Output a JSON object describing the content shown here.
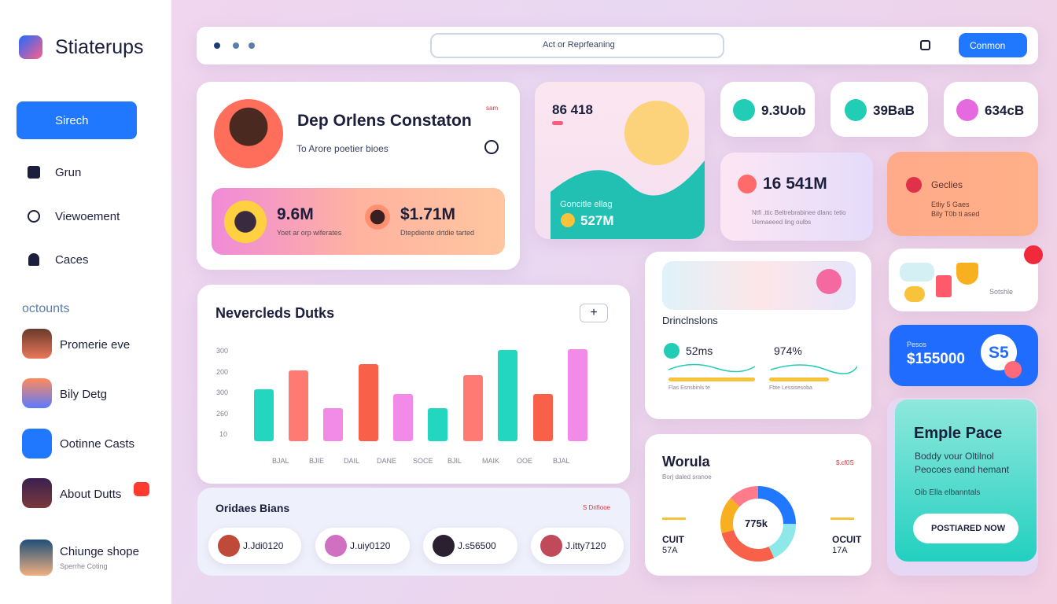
{
  "sidebar": {
    "logo": "Stiaterups",
    "nav": [
      "Sirech",
      "Grun",
      "Viewoement",
      "Caces"
    ],
    "section": "octounts",
    "contacts": [
      {
        "name": "Promerie eve"
      },
      {
        "name": "Bily Detg"
      },
      {
        "name": "Ootinne Casts"
      },
      {
        "name": "About Dutts"
      },
      {
        "name": "Chiunge shope",
        "sub": "Sperrhe Coting"
      }
    ]
  },
  "topbar": {
    "search": "Act or Reprfeaning",
    "button": "Conmon"
  },
  "profile": {
    "name": "Dep Orlens Constaton",
    "subtitle": "To Arore poetier bioes",
    "badge": "sam",
    "stats": [
      {
        "value": "9.6M",
        "label": "Yoet ar orp wiferates"
      },
      {
        "value": "$1.71M",
        "label": "Dtepdiente drtdie tarted"
      }
    ]
  },
  "wave_card": {
    "top": "86 418",
    "label": "Goncitle ellag",
    "value": "527M"
  },
  "mini_stats": [
    "9.3Uob",
    "39BaB",
    "634cB"
  ],
  "lavender_card": {
    "value": "16 541M",
    "lines": [
      "Ntfi ,ttic Beltrebrabinee dlanc tetio",
      "Uemaeeed ling oulbs"
    ]
  },
  "orange_card": {
    "title": "Geclies",
    "lines": [
      "Etliy 5 Gaes",
      "Bily T0b ti ased"
    ]
  },
  "trophy_card": {
    "label": "Sotshle"
  },
  "blue_card": {
    "label": "Pesos",
    "value": "$155000",
    "badge": "S5"
  },
  "chart_card": {
    "title": "Nevercleds Dutks",
    "y_labels": [
      "300",
      "200",
      "300",
      "260",
      "10"
    ],
    "x_labels": [
      "BJAL",
      "BJIE",
      "DAIL",
      "DANE",
      "SOCE",
      "BJIL",
      "MAIK",
      "OOE",
      "BJAL"
    ]
  },
  "orders": {
    "title": "Oridaes Bians",
    "link": "S Drifiooe",
    "pills": [
      "J.Jdi0120",
      "J.uiy0120",
      "J.s56500",
      "J.itty7120"
    ]
  },
  "dimensions": {
    "title": "Drinclnslons",
    "items": [
      {
        "value": "52ms",
        "label": "Flas Esnsbinls te"
      },
      {
        "value": "974%",
        "label": "Fbte Lessisesoba"
      }
    ]
  },
  "worula": {
    "title": "Worula",
    "tag": "$.cf0S",
    "subtitle": "Borj daled sranoe",
    "left": [
      "CUIT",
      "57A"
    ],
    "center": "775k",
    "right": [
      "OCUIT",
      "17A"
    ]
  },
  "promo": {
    "title": "Emple Pace",
    "text": [
      "Boddy vour Oltilnol",
      "Peocoes eand hemant"
    ],
    "note": "Oib Ella elbanntals",
    "button": "POSTIARED NOW"
  }
}
